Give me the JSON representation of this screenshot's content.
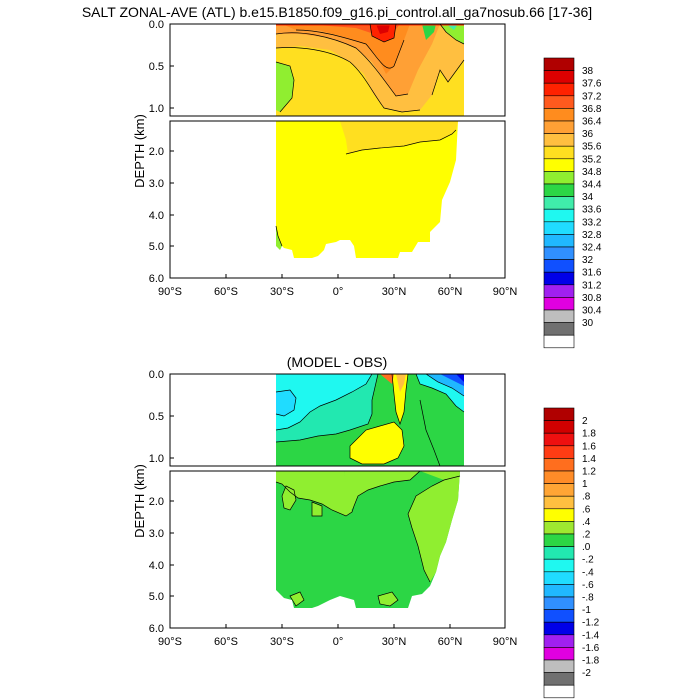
{
  "figure": {
    "title": "SALT ZONAL-AVE (ATL) b.e15.B1850.f09_g16.pi_control.all_ga7nosub.66 [17-36]",
    "ylabel": "DEPTH (km)"
  },
  "chart_data": [
    {
      "type": "heatmap",
      "title": "SALT ZONAL-AVE (ATL) b.e15.B1850.f09_g16.pi_control.all_ga7nosub.66 [17-36]",
      "ylabel": "DEPTH (km)",
      "xlim": [
        -90,
        90
      ],
      "ylim_upper_panel_km": [
        0.0,
        1.1
      ],
      "ylim_lower_panel_km": [
        1.1,
        6.0
      ],
      "x_ticks": [
        "90°S",
        "60°S",
        "30°S",
        "0°",
        "30°N",
        "60°N",
        "90°N"
      ],
      "y_ticks_upper": [
        "0.0",
        "0.5",
        "1.0"
      ],
      "y_ticks_lower": [
        "2.0",
        "3.0",
        "4.0",
        "5.0",
        "6.0"
      ],
      "colorbar_labels": [
        "38",
        "37.6",
        "37.2",
        "36.8",
        "36.4",
        "36",
        "35.6",
        "35.2",
        "34.8",
        "34.4",
        "34",
        "33.6",
        "33.2",
        "32.8",
        "32.4",
        "32",
        "31.6",
        "31.2",
        "30.8",
        "30.4",
        "30"
      ],
      "colorbar_colors": [
        "#b00000",
        "#dd0000",
        "#ff2200",
        "#ff5a1e",
        "#ff8c1e",
        "#ffa035",
        "#ffbf40",
        "#ffdf20",
        "#ffff00",
        "#90ee30",
        "#2cd645",
        "#40ecaa",
        "#1ff8f0",
        "#20dcff",
        "#20b8ff",
        "#3090ff",
        "#1050ff",
        "#0000e8",
        "#a020f0",
        "#e000e0",
        "#bebebe",
        "#707070",
        "#ffffff"
      ]
    },
    {
      "type": "heatmap",
      "title": "(MODEL - OBS)",
      "ylabel": "DEPTH (km)",
      "xlim": [
        -90,
        90
      ],
      "ylim_upper_panel_km": [
        0.0,
        1.1
      ],
      "ylim_lower_panel_km": [
        1.1,
        6.0
      ],
      "x_ticks": [
        "90°S",
        "60°S",
        "30°S",
        "0°",
        "30°N",
        "60°N",
        "90°N"
      ],
      "y_ticks_upper": [
        "0.0",
        "0.5",
        "1.0"
      ],
      "y_ticks_lower": [
        "2.0",
        "3.0",
        "4.0",
        "5.0",
        "6.0"
      ],
      "colorbar_labels": [
        "2",
        "1.8",
        "1.6",
        "1.4",
        "1.2",
        "1",
        ".8",
        ".6",
        ".4",
        ".2",
        ".0",
        "-.2",
        "-.4",
        "-.6",
        "-.8",
        "-1",
        "-1.2",
        "-1.4",
        "-1.6",
        "-1.8",
        "-2"
      ],
      "colorbar_colors": [
        "#b00000",
        "#d00000",
        "#ee1010",
        "#ff3c14",
        "#ff6e1e",
        "#ff8c28",
        "#ffa535",
        "#ffbf40",
        "#ffff00",
        "#9fe830",
        "#2cd645",
        "#22e8b0",
        "#1ff8f0",
        "#20dcff",
        "#20b8ff",
        "#3090ff",
        "#1050ff",
        "#0000e8",
        "#a020f0",
        "#e000e0",
        "#bebebe",
        "#707070",
        "#ffffff"
      ]
    }
  ]
}
